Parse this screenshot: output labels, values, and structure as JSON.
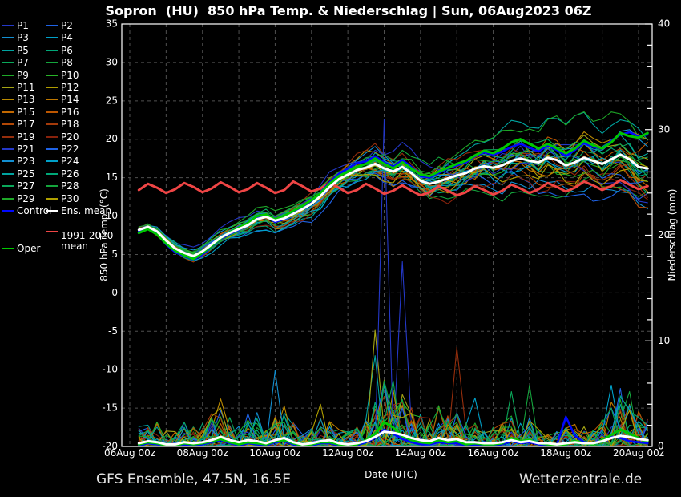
{
  "header": {
    "title": "Sopron  (HU)  850 hPa Temp. & Niederschlag | Sun, 06Aug2023 06Z"
  },
  "footer": {
    "left": "GFS Ensemble, 47.5N, 16.5E",
    "right": "Wetterzentrale.de"
  },
  "axes": {
    "left_label": "850 hPa Temp. (°C)",
    "right_label": "Niederschlag (mm)",
    "x_label": "Date (UTC)",
    "left_ticks": [
      35,
      30,
      25,
      20,
      15,
      10,
      5,
      0,
      -5,
      -10,
      -15,
      -20
    ],
    "right_ticks": [
      40,
      30,
      20,
      10,
      0
    ],
    "x_tick_labels": [
      "06Aug 00z",
      "08Aug 00z",
      "10Aug 00z",
      "12Aug 00z",
      "14Aug 00z",
      "16Aug 00z",
      "18Aug 00z",
      "20Aug 00z"
    ],
    "x_tick_hours": [
      0,
      48,
      96,
      144,
      192,
      240,
      288,
      336
    ],
    "temp_range": [
      -20,
      35
    ],
    "precip_range": [
      0,
      40
    ]
  },
  "colors": {
    "background": "#000000",
    "frame": "#ffffff",
    "grid": "#4f4f4f",
    "control": "#0008ff",
    "ens_mean": "#ffffff",
    "clim_mean": "#ef4545",
    "oper": "#00c800"
  },
  "legend": {
    "members": [
      {
        "label": "P1",
        "color": "#2438c8"
      },
      {
        "label": "P2",
        "color": "#1f63e6"
      },
      {
        "label": "P3",
        "color": "#128fd2"
      },
      {
        "label": "P4",
        "color": "#00a0c8"
      },
      {
        "label": "P5",
        "color": "#00a4a0"
      },
      {
        "label": "P6",
        "color": "#00a878"
      },
      {
        "label": "P7",
        "color": "#0aa85a"
      },
      {
        "label": "P8",
        "color": "#14a53c"
      },
      {
        "label": "P9",
        "color": "#1ea828"
      },
      {
        "label": "P10",
        "color": "#28b428"
      },
      {
        "label": "P11",
        "color": "#a4a414"
      },
      {
        "label": "P12",
        "color": "#b09c00"
      },
      {
        "label": "P13",
        "color": "#ba8a00"
      },
      {
        "label": "P14",
        "color": "#c07800"
      },
      {
        "label": "P15",
        "color": "#c26800"
      },
      {
        "label": "P16",
        "color": "#bc5600"
      },
      {
        "label": "P17",
        "color": "#b24806"
      },
      {
        "label": "P18",
        "color": "#a43a0a"
      },
      {
        "label": "P19",
        "color": "#962e0c"
      },
      {
        "label": "P20",
        "color": "#88220c"
      },
      {
        "label": "P21",
        "color": "#2438c8"
      },
      {
        "label": "P22",
        "color": "#1f63e6"
      },
      {
        "label": "P23",
        "color": "#128fd2"
      },
      {
        "label": "P24",
        "color": "#00a0c8"
      },
      {
        "label": "P25",
        "color": "#00a4a0"
      },
      {
        "label": "P26",
        "color": "#00a878"
      },
      {
        "label": "P27",
        "color": "#0aa85a"
      },
      {
        "label": "P28",
        "color": "#14a53c"
      },
      {
        "label": "P29",
        "color": "#1ea828"
      },
      {
        "label": "P30",
        "color": "#b0a000"
      }
    ],
    "specials": [
      {
        "label": "Control",
        "color": "#0008ff"
      },
      {
        "label": "Ens. mean",
        "color": "#ffffff"
      },
      {
        "label": "1991-2020 mean",
        "color": "#ef4545"
      },
      {
        "label": "Oper",
        "color": "#00c800"
      }
    ]
  },
  "chart_data": {
    "type": "line",
    "title": "Sopron  (HU)  850 hPa Temp. & Niederschlag | Sun, 06Aug2023 06Z",
    "x_start_hour": 6,
    "x_step_hours": 6,
    "n_points": 57,
    "series": {
      "ens_mean_temp": [
        8.2,
        8.6,
        8.0,
        6.8,
        5.8,
        5.2,
        4.8,
        5.4,
        6.3,
        7.2,
        7.8,
        8.3,
        8.8,
        9.6,
        9.9,
        9.4,
        9.7,
        10.3,
        10.9,
        11.6,
        12.6,
        13.8,
        14.8,
        15.4,
        16.0,
        16.3,
        16.8,
        16.2,
        15.8,
        16.4,
        15.6,
        14.6,
        14.2,
        14.5,
        14.9,
        15.3,
        15.6,
        16.2,
        16.5,
        16.3,
        16.6,
        17.2,
        17.5,
        17.2,
        17.0,
        17.6,
        17.3,
        16.6,
        17.0,
        17.6,
        17.2,
        16.8,
        17.4,
        18.0,
        17.4,
        16.4,
        16.2
      ],
      "control_temp": [
        8.0,
        8.4,
        7.7,
        6.3,
        5.3,
        4.8,
        4.3,
        5.0,
        6.0,
        7.0,
        7.7,
        8.2,
        8.9,
        9.8,
        10.0,
        9.2,
        9.6,
        10.5,
        11.2,
        12.0,
        13.1,
        14.4,
        15.5,
        16.2,
        16.9,
        17.1,
        17.8,
        17.0,
        16.4,
        17.3,
        16.4,
        15.2,
        15.0,
        15.6,
        16.2,
        16.6,
        17.0,
        17.8,
        18.3,
        18.0,
        18.4,
        19.0,
        19.4,
        18.9,
        18.4,
        19.2,
        18.6,
        17.8,
        18.6,
        19.5,
        19.0,
        18.8,
        19.8,
        20.6,
        20.9,
        20.4,
        20.6
      ],
      "oper_temp": [
        7.8,
        8.3,
        7.6,
        6.4,
        5.5,
        4.9,
        4.4,
        5.2,
        6.1,
        7.1,
        7.9,
        8.5,
        9.1,
        10.0,
        10.2,
        9.6,
        10.0,
        10.7,
        11.3,
        12.1,
        13.0,
        14.2,
        15.2,
        15.8,
        16.4,
        16.8,
        17.5,
        16.8,
        16.2,
        17.0,
        16.2,
        15.4,
        15.2,
        15.8,
        16.3,
        16.8,
        17.2,
        17.9,
        18.5,
        18.2,
        18.8,
        19.6,
        20.0,
        19.4,
        18.8,
        19.4,
        18.8,
        18.2,
        18.8,
        19.8,
        19.2,
        18.8,
        19.6,
        20.8,
        20.4,
        20.2,
        20.8
      ],
      "clim_mean_temp": [
        13.4,
        14.2,
        13.7,
        13.0,
        13.5,
        14.3,
        13.8,
        13.1,
        13.6,
        14.4,
        13.8,
        13.1,
        13.5,
        14.3,
        13.7,
        13.0,
        13.4,
        14.5,
        13.9,
        13.2,
        13.6,
        14.3,
        13.7,
        13.0,
        13.4,
        14.2,
        13.6,
        12.9,
        13.3,
        14.0,
        13.3,
        12.7,
        13.1,
        13.9,
        13.3,
        12.7,
        13.1,
        13.9,
        13.4,
        12.8,
        13.3,
        14.1,
        13.6,
        13.0,
        13.5,
        14.3,
        13.8,
        13.2,
        13.7,
        14.5,
        14.0,
        13.4,
        13.9,
        14.7,
        14.1,
        13.5,
        13.9
      ],
      "ens_mean_precip": [
        0.3,
        0.5,
        0.4,
        0.2,
        0.2,
        0.4,
        0.3,
        0.4,
        0.6,
        0.9,
        0.6,
        0.4,
        0.6,
        0.5,
        0.3,
        0.6,
        0.8,
        0.4,
        0.2,
        0.3,
        0.5,
        0.6,
        0.3,
        0.2,
        0.3,
        0.5,
        0.9,
        1.4,
        1.3,
        1.1,
        0.8,
        0.6,
        0.5,
        0.8,
        0.6,
        0.7,
        0.4,
        0.4,
        0.3,
        0.3,
        0.4,
        0.6,
        0.4,
        0.5,
        0.3,
        0.3,
        0.2,
        0.3,
        0.4,
        0.3,
        0.3,
        0.5,
        0.8,
        1.0,
        0.9,
        0.7,
        0.6
      ],
      "oper_precip": [
        0.2,
        0.4,
        0.3,
        0.1,
        0.1,
        0.3,
        0.2,
        0.3,
        0.5,
        0.7,
        0.4,
        0.2,
        0.4,
        0.3,
        0.2,
        0.5,
        0.6,
        0.3,
        0.1,
        0.2,
        0.4,
        0.4,
        0.2,
        0.1,
        0.2,
        0.6,
        1.2,
        2.3,
        1.8,
        1.0,
        0.6,
        0.4,
        0.3,
        0.6,
        0.4,
        0.5,
        0.2,
        0.3,
        0.2,
        0.2,
        0.3,
        0.8,
        0.5,
        0.6,
        0.3,
        0.2,
        0.1,
        0.2,
        0.5,
        0.3,
        0.2,
        0.6,
        1.1,
        1.6,
        1.2,
        0.8,
        0.5
      ],
      "control_precip": [
        0.1,
        0.3,
        0.2,
        0.1,
        0.1,
        0.2,
        0.1,
        0.2,
        0.4,
        0.6,
        0.3,
        0.1,
        0.3,
        0.2,
        0.1,
        0.4,
        0.5,
        0.2,
        0.1,
        0.1,
        0.3,
        0.3,
        0.1,
        0.1,
        0.1,
        0.4,
        0.8,
        1.6,
        1.2,
        0.7,
        0.4,
        0.2,
        0.2,
        0.4,
        0.3,
        0.3,
        0.1,
        0.2,
        0.1,
        0.1,
        0.2,
        0.5,
        0.3,
        0.4,
        0.2,
        0.1,
        0.1,
        2.8,
        1.0,
        0.4,
        0.3,
        0.6,
        0.9,
        0.8,
        0.5,
        0.4,
        0.3
      ]
    },
    "member_spread_degC": [
      0.5,
      0.6,
      0.7,
      0.8,
      0.9,
      1.0,
      1.0,
      1.1,
      1.2,
      1.3,
      1.3,
      1.4,
      1.5,
      1.6,
      1.6,
      1.7,
      1.8,
      1.9,
      2.0,
      2.1,
      2.2,
      2.4,
      2.5,
      2.6,
      2.8,
      2.9,
      3.0,
      3.1,
      3.2,
      3.3,
      3.4,
      3.5,
      3.6,
      3.7,
      3.8,
      3.9,
      4.0,
      4.1,
      4.2,
      4.2,
      4.3,
      4.4,
      4.5,
      4.5,
      4.6,
      4.7,
      4.7,
      4.8,
      4.8,
      4.9,
      4.9,
      5.0,
      5.0,
      5.1,
      5.1,
      5.2,
      5.2
    ],
    "precip_spikes_mm": [
      {
        "member": "P23",
        "index": 15,
        "mm": 7.2
      },
      {
        "member": "P11",
        "index": 26,
        "mm": 11.0
      },
      {
        "member": "P5",
        "index": 26,
        "mm": 8.6
      },
      {
        "member": "P21",
        "index": 27,
        "mm": 31.0
      },
      {
        "member": "P1",
        "index": 29,
        "mm": 17.5
      },
      {
        "member": "P27",
        "index": 28,
        "mm": 6.2
      },
      {
        "member": "P19",
        "index": 35,
        "mm": 9.4
      },
      {
        "member": "P4",
        "index": 37,
        "mm": 4.6
      },
      {
        "member": "P7",
        "index": 41,
        "mm": 5.2
      },
      {
        "member": "P28",
        "index": 43,
        "mm": 5.8
      },
      {
        "member": "P13",
        "index": 9,
        "mm": 4.5
      },
      {
        "member": "P22",
        "index": 9,
        "mm": 3.4
      },
      {
        "member": "P24",
        "index": 52,
        "mm": 5.8
      },
      {
        "member": "P2",
        "index": 53,
        "mm": 5.5
      },
      {
        "member": "P8",
        "index": 54,
        "mm": 5.2
      },
      {
        "member": "P26",
        "index": 53,
        "mm": 4.8
      },
      {
        "member": "P14",
        "index": 52,
        "mm": 4.2
      },
      {
        "member": "P30",
        "index": 20,
        "mm": 4.0
      },
      {
        "member": "P16",
        "index": 33,
        "mm": 3.6
      },
      {
        "member": "P3",
        "index": 13,
        "mm": 3.2
      }
    ]
  }
}
